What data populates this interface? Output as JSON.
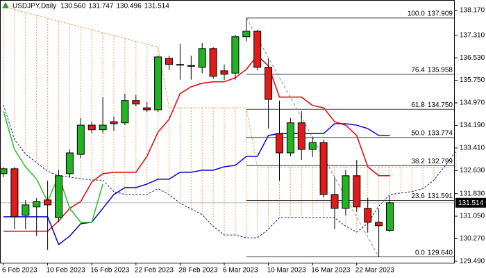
{
  "chart_data": {
    "type": "candlestick",
    "symbol": "USDJPY,Daily",
    "header_values": [
      {
        "value": 130.56,
        "label": "130.560"
      },
      131.747,
      130.496,
      131.514
    ],
    "categories": [
      "6 Feb 2023",
      null,
      null,
      null,
      "10 Feb 2023",
      null,
      null,
      null,
      "16 Feb 2023",
      null,
      null,
      null,
      "22 Feb 2023",
      null,
      null,
      null,
      "28 Feb 2023",
      null,
      null,
      null,
      "6 Mar 2023",
      null,
      null,
      null,
      "10 Mar 2023",
      null,
      null,
      null,
      "16 Mar 2023",
      null,
      null,
      null,
      "22 Mar 2023",
      null,
      null,
      null,
      null,
      null,
      null,
      null,
      null,
      null
    ],
    "candles": {
      "up_color": "#22b322",
      "down_color": "#e01b1b",
      "open": [
        132.52,
        132.69,
        131.08,
        131.37,
        131.61,
        131.0,
        132.52,
        133.19,
        134.2,
        134.04,
        134.32,
        134.28,
        135.05,
        134.8,
        134.73,
        136.51,
        136.3,
        136.25,
        136.2,
        136.85,
        136.08,
        136.0,
        137.26,
        137.45,
        136.2,
        133.91,
        133.24,
        134.28,
        133.36,
        133.6,
        131.8,
        131.32,
        132.45,
        131.32,
        130.84,
        130.56,
        null,
        null,
        null,
        null,
        null,
        null
      ],
      "high": [
        132.75,
        132.75,
        131.61,
        131.68,
        132.28,
        132.64,
        133.36,
        134.44,
        134.32,
        135.17,
        134.5,
        135.29,
        135.25,
        135.0,
        136.61,
        136.6,
        137.02,
        136.6,
        137.04,
        136.9,
        136.3,
        137.33,
        137.909,
        137.5,
        136.5,
        135.05,
        134.44,
        134.68,
        133.8,
        133.7,
        132.4,
        132.64,
        133.0,
        131.68,
        131.32,
        131.747,
        null,
        null,
        null,
        null,
        null,
        null
      ],
      "low": [
        132.4,
        130.6,
        130.6,
        130.36,
        129.88,
        130.84,
        132.4,
        133.05,
        133.93,
        133.92,
        134.0,
        134.2,
        134.85,
        134.65,
        134.65,
        136.1,
        135.77,
        135.77,
        136.0,
        135.8,
        135.76,
        135.77,
        137.1,
        136.1,
        134.08,
        132.28,
        133.12,
        133.0,
        133.1,
        131.7,
        130.6,
        131.08,
        131.2,
        130.48,
        129.64,
        130.496,
        null,
        null,
        null,
        null,
        null,
        null
      ],
      "close": [
        132.69,
        131.03,
        131.44,
        131.56,
        131.44,
        132.45,
        133.24,
        134.2,
        134.04,
        134.2,
        134.25,
        135.05,
        134.93,
        134.73,
        136.56,
        136.3,
        136.28,
        136.26,
        136.85,
        135.89,
        135.96,
        137.26,
        137.45,
        136.2,
        135.09,
        133.24,
        134.28,
        133.36,
        133.6,
        131.8,
        131.32,
        132.45,
        131.37,
        130.84,
        130.72,
        131.514,
        null,
        null,
        null,
        null,
        null,
        null
      ]
    },
    "series": [
      {
        "color": "#e01010",
        "style": "solid",
        "values": [
          130.53,
          130.53,
          130.53,
          130.53,
          130.53,
          130.89,
          131.32,
          131.56,
          132.23,
          132.52,
          132.57,
          132.57,
          132.57,
          133.12,
          133.96,
          134.4,
          135.29,
          135.53,
          135.65,
          135.7,
          135.7,
          135.84,
          136.13,
          136.61,
          136.25,
          135.17,
          135.17,
          135.17,
          134.88,
          134.8,
          134.32,
          134.2,
          133.84,
          132.76,
          132.45,
          132.45,
          null,
          null,
          null,
          null,
          null,
          null
        ]
      },
      {
        "color": "#1010d0",
        "style": "solid",
        "values": [
          131.03,
          131.03,
          131.03,
          131.03,
          131.03,
          130.07,
          130.36,
          130.79,
          130.84,
          131.32,
          131.8,
          132.04,
          132.04,
          132.16,
          132.33,
          132.33,
          132.57,
          132.57,
          132.64,
          132.64,
          132.76,
          132.81,
          133.12,
          133.12,
          133.84,
          133.91,
          133.91,
          133.91,
          133.91,
          133.91,
          134.25,
          134.25,
          134.2,
          134.08,
          133.84,
          133.84,
          null,
          null,
          null,
          null,
          null,
          null
        ]
      },
      {
        "color": "#30c030",
        "style": "solid",
        "values": [
          134.68,
          133.36,
          132.76,
          132.33,
          131.56,
          132.45,
          131.32,
          130.84,
          130.84,
          132.16,
          null,
          null,
          null,
          null,
          null,
          null,
          null,
          null,
          null,
          null,
          null,
          null,
          null,
          null,
          null,
          null,
          null,
          null,
          null,
          null,
          null,
          null,
          null,
          null,
          null,
          null,
          null,
          null,
          null,
          null,
          null,
          null
        ]
      }
    ],
    "cloud": {
      "color": "#f0a050",
      "span_a": {
        "color": "#e8a060",
        "style": "dashed",
        "values": [
          138.3,
          138.2,
          138.1,
          138.0,
          137.9,
          137.8,
          137.7,
          137.6,
          137.5,
          137.4,
          137.3,
          137.2,
          137.1,
          137.0,
          136.9,
          134.8,
          134.8,
          134.8,
          134.8,
          134.8,
          134.8,
          134.8,
          134.8,
          132.75,
          132.75,
          132.75,
          132.75,
          132.75,
          132.75,
          132.75,
          132.75,
          132.75,
          132.75,
          132.75,
          132.75,
          132.75,
          132.75,
          132.75,
          132.75,
          132.75,
          132.75,
          132.75
        ]
      },
      "span_b": {
        "color": "#202080",
        "style": "dashed",
        "values": [
          134.9,
          133.7,
          133.2,
          132.9,
          132.6,
          132.45,
          132.4,
          132.35,
          132.3,
          132.3,
          131.9,
          131.8,
          131.8,
          131.8,
          132.0,
          131.8,
          131.5,
          131.3,
          131.1,
          130.7,
          130.4,
          130.4,
          130.3,
          130.3,
          130.6,
          131.0,
          131.0,
          131.0,
          131.0,
          131.0,
          131.0,
          130.7,
          130.5,
          130.8,
          131.4,
          131.8,
          131.85,
          131.9,
          132.0,
          132.3,
          132.8,
          133.3
        ]
      }
    },
    "fibonacci": {
      "color": "#404040",
      "levels": [
        {
          "ratio": {
            "value": 100,
            "label": "100.0"
          },
          "price": 137.909
        },
        {
          "ratio": 76.4,
          "price": 135.958
        },
        {
          "ratio": 61.8,
          "price": {
            "value": 134.75,
            "label": "134.750"
          }
        },
        {
          "ratio": {
            "value": 50,
            "label": "50.0"
          },
          "price": 133.774
        },
        {
          "ratio": 38.2,
          "price": 132.799
        },
        {
          "ratio": 23.6,
          "price": 131.591
        },
        {
          "ratio": {
            "value": 0,
            "label": "0.0"
          },
          "price": {
            "value": 129.64,
            "label": "129.640"
          }
        }
      ]
    },
    "ylim": [
      129.44,
      138.53
    ],
    "yticks": [
      {
        "value": 138.17,
        "label": "138.170"
      },
      {
        "value": 137.31,
        "label": "137.310"
      },
      {
        "value": 136.53,
        "label": "136.530"
      },
      {
        "value": 135.75,
        "label": "135.750"
      },
      {
        "value": 134.97,
        "label": "134.970"
      },
      {
        "value": 134.19,
        "label": "134.190"
      },
      {
        "value": 133.41,
        "label": "133.410"
      },
      {
        "value": 132.63,
        "label": "132.630"
      },
      {
        "value": 131.83,
        "label": "131.830"
      },
      {
        "value": 131.05,
        "label": "131.050"
      },
      {
        "value": 130.27,
        "label": "130.270"
      },
      {
        "value": 129.49,
        "label": "129.490"
      }
    ]
  }
}
